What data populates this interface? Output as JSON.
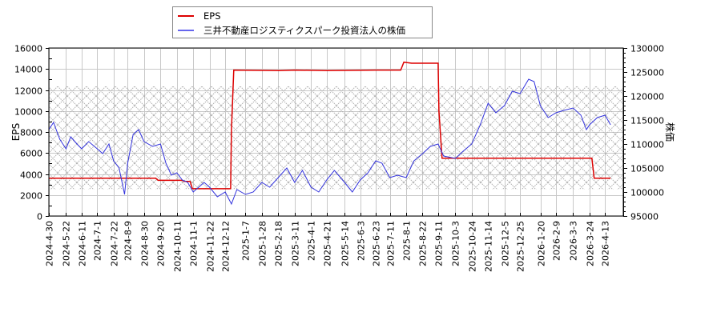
{
  "legend": {
    "items": [
      {
        "label": "EPS",
        "color": "#dd0000"
      },
      {
        "label": "三井不動産ロジスティクスパーク投資法人の株価",
        "color": "#3333dd"
      }
    ]
  },
  "axes": {
    "left_title": "EPS",
    "right_title": "株価"
  },
  "chart_data": {
    "type": "line",
    "title": "",
    "xlabel": "",
    "ylabel": "EPS",
    "y2label": "株価",
    "ylim": [
      0,
      16000
    ],
    "y2lim": [
      95000,
      130000
    ],
    "grid": true,
    "legend_position": "top",
    "yticks": [
      0,
      2000,
      4000,
      6000,
      8000,
      10000,
      12000,
      14000,
      16000
    ],
    "y2ticks": [
      95000,
      100000,
      105000,
      110000,
      115000,
      120000,
      125000,
      130000
    ],
    "x_tick_labels": [
      "2024-4-30",
      "2024-5-22",
      "2024-6-11",
      "2024-7-1",
      "2024-7-22",
      "2024-8-9",
      "2024-8-30",
      "2024-9-20",
      "2024-10-11",
      "2024-11-1",
      "2024-11-22",
      "2024-12-12",
      "2025-1-7",
      "2025-1-28",
      "2025-2-18",
      "2025-3-11",
      "2025-4-1",
      "2025-4-21",
      "2025-5-14",
      "2025-6-3",
      "2025-6-23",
      "2025-7-11",
      "2025-8-1",
      "2025-8-22",
      "2025-9-11",
      "2025-10-3",
      "2025-10-24",
      "2025-11-14",
      "2025-12-5",
      "2025-12-25",
      "2026-1-20",
      "2026-2-9",
      "2026-3-3",
      "2026-3-24",
      "2026-4-13"
    ],
    "shaded_band": {
      "y2_from": 100500,
      "y2_to": 122000,
      "pattern": "crosshatch"
    },
    "series": [
      {
        "name": "EPS",
        "axis": "left",
        "color": "#dd0000",
        "points": [
          [
            "2024-4-30",
            3600
          ],
          [
            "2024-9-14",
            3600
          ],
          [
            "2024-9-17",
            3400
          ],
          [
            "2024-10-18",
            3400
          ],
          [
            "2024-10-21",
            3300
          ],
          [
            "2024-10-28",
            3300
          ],
          [
            "2024-10-31",
            2600
          ],
          [
            "2024-12-19",
            2600
          ],
          [
            "2024-12-20",
            8200
          ],
          [
            "2024-12-23",
            13900
          ],
          [
            "2025-2-20",
            13850
          ],
          [
            "2025-3-11",
            13900
          ],
          [
            "2025-4-21",
            13850
          ],
          [
            "2025-6-23",
            13900
          ],
          [
            "2025-7-25",
            13900
          ],
          [
            "2025-7-29",
            14650
          ],
          [
            "2025-8-8",
            14550
          ],
          [
            "2025-9-11",
            14550
          ],
          [
            "2025-9-12",
            10000
          ],
          [
            "2025-9-16",
            5500
          ],
          [
            "2026-3-27",
            5500
          ],
          [
            "2026-3-30",
            3600
          ],
          [
            "2026-4-20",
            3600
          ]
        ]
      },
      {
        "name": "三井不動産ロジスティクスパーク投資法人の株価",
        "axis": "right",
        "color": "#3333dd",
        "points": [
          [
            "2024-4-30",
            113000
          ],
          [
            "2024-5-6",
            114500
          ],
          [
            "2024-5-14",
            111000
          ],
          [
            "2024-5-22",
            109000
          ],
          [
            "2024-5-28",
            111500
          ],
          [
            "2024-6-5",
            110000
          ],
          [
            "2024-6-11",
            109000
          ],
          [
            "2024-6-20",
            110500
          ],
          [
            "2024-7-1",
            109000
          ],
          [
            "2024-7-8",
            108000
          ],
          [
            "2024-7-16",
            110000
          ],
          [
            "2024-7-22",
            106500
          ],
          [
            "2024-7-29",
            105000
          ],
          [
            "2024-8-5",
            99500
          ],
          [
            "2024-8-9",
            106000
          ],
          [
            "2024-8-16",
            112000
          ],
          [
            "2024-8-23",
            113000
          ],
          [
            "2024-8-30",
            110500
          ],
          [
            "2024-9-10",
            109500
          ],
          [
            "2024-9-20",
            110000
          ],
          [
            "2024-9-27",
            106000
          ],
          [
            "2024-10-4",
            103500
          ],
          [
            "2024-10-11",
            104000
          ],
          [
            "2024-10-18",
            102500
          ],
          [
            "2024-10-25",
            102000
          ],
          [
            "2024-11-1",
            100000
          ],
          [
            "2024-11-8",
            101000
          ],
          [
            "2024-11-15",
            102000
          ],
          [
            "2024-11-22",
            101000
          ],
          [
            "2024-12-2",
            99000
          ],
          [
            "2024-12-12",
            100000
          ],
          [
            "2024-12-20",
            97500
          ],
          [
            "2024-12-27",
            100500
          ],
          [
            "2025-1-7",
            99500
          ],
          [
            "2025-1-17",
            100000
          ],
          [
            "2025-1-28",
            102000
          ],
          [
            "2025-2-7",
            101000
          ],
          [
            "2025-2-18",
            103000
          ],
          [
            "2025-3-1",
            105000
          ],
          [
            "2025-3-11",
            102000
          ],
          [
            "2025-3-21",
            104500
          ],
          [
            "2025-4-1",
            101000
          ],
          [
            "2025-4-11",
            100000
          ],
          [
            "2025-4-21",
            102500
          ],
          [
            "2025-5-1",
            104500
          ],
          [
            "2025-5-14",
            102000
          ],
          [
            "2025-5-24",
            100000
          ],
          [
            "2025-6-3",
            102500
          ],
          [
            "2025-6-13",
            104000
          ],
          [
            "2025-6-23",
            106500
          ],
          [
            "2025-7-1",
            106000
          ],
          [
            "2025-7-11",
            103000
          ],
          [
            "2025-7-21",
            103500
          ],
          [
            "2025-8-1",
            103000
          ],
          [
            "2025-8-11",
            106500
          ],
          [
            "2025-8-22",
            108000
          ],
          [
            "2025-9-1",
            109500
          ],
          [
            "2025-9-11",
            110000
          ],
          [
            "2025-9-18",
            107500
          ],
          [
            "2025-10-3",
            107000
          ],
          [
            "2025-10-13",
            108500
          ],
          [
            "2025-10-24",
            110000
          ],
          [
            "2025-11-4",
            114000
          ],
          [
            "2025-11-14",
            118500
          ],
          [
            "2025-11-24",
            116500
          ],
          [
            "2025-12-5",
            118000
          ],
          [
            "2025-12-15",
            121000
          ],
          [
            "2025-12-25",
            120500
          ],
          [
            "2026-1-5",
            123500
          ],
          [
            "2026-1-12",
            123000
          ],
          [
            "2026-1-20",
            118000
          ],
          [
            "2026-1-30",
            115500
          ],
          [
            "2026-2-9",
            116500
          ],
          [
            "2026-2-19",
            117000
          ],
          [
            "2026-3-3",
            117500
          ],
          [
            "2026-3-13",
            116000
          ],
          [
            "2026-3-20",
            113000
          ],
          [
            "2026-3-24",
            114000
          ],
          [
            "2026-4-3",
            115500
          ],
          [
            "2026-4-13",
            116000
          ],
          [
            "2026-4-20",
            114000
          ]
        ]
      }
    ]
  }
}
